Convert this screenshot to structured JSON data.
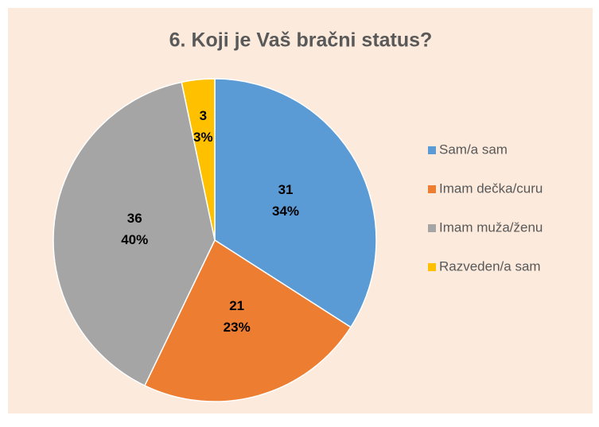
{
  "chart_data": {
    "type": "pie",
    "title": "6. Koji je Vaš bračni status?",
    "categories": [
      "Sam/a sam",
      "Imam dečka/curu",
      "Imam muža/ženu",
      "Razveden/a sam"
    ],
    "values": [
      31,
      21,
      36,
      3
    ],
    "percent_labels": [
      "34%",
      "23%",
      "40%",
      "3%"
    ],
    "colors": [
      "#5B9BD5",
      "#ED7D31",
      "#A5A5A5",
      "#FFC000"
    ],
    "legend": "right"
  }
}
